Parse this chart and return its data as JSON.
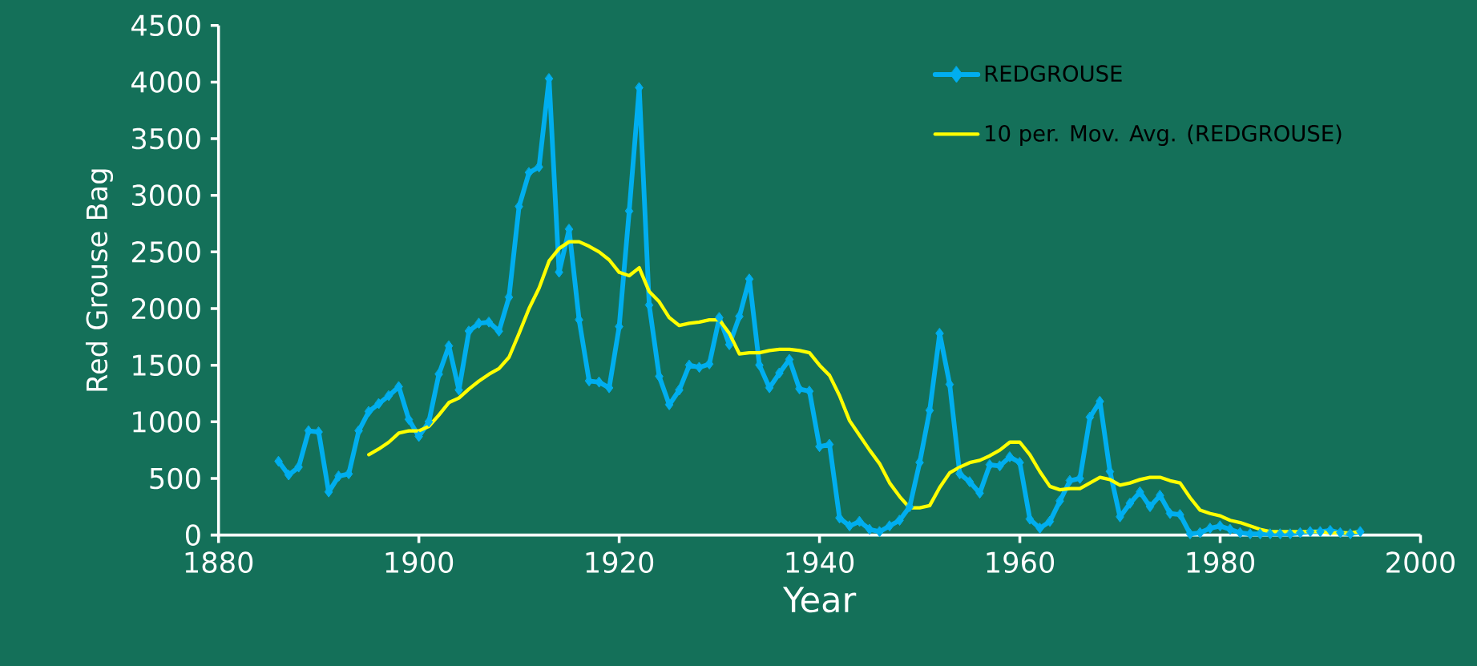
{
  "chart_data": {
    "type": "line",
    "xlabel": "Year",
    "ylabel": "Red Grouse Bag",
    "x": [
      1886,
      1887,
      1888,
      1889,
      1890,
      1891,
      1892,
      1893,
      1894,
      1895,
      1896,
      1897,
      1898,
      1899,
      1900,
      1901,
      1902,
      1903,
      1904,
      1905,
      1906,
      1907,
      1908,
      1909,
      1910,
      1911,
      1912,
      1913,
      1914,
      1915,
      1916,
      1917,
      1918,
      1919,
      1920,
      1921,
      1922,
      1923,
      1924,
      1925,
      1926,
      1927,
      1928,
      1929,
      1930,
      1931,
      1932,
      1933,
      1934,
      1935,
      1936,
      1937,
      1938,
      1939,
      1940,
      1941,
      1942,
      1943,
      1944,
      1945,
      1946,
      1947,
      1948,
      1949,
      1950,
      1951,
      1952,
      1953,
      1954,
      1955,
      1956,
      1957,
      1958,
      1959,
      1960,
      1961,
      1962,
      1963,
      1964,
      1965,
      1966,
      1967,
      1968,
      1969,
      1970,
      1971,
      1972,
      1973,
      1974,
      1975,
      1976,
      1977,
      1978,
      1979,
      1980,
      1981,
      1982,
      1983,
      1984,
      1985,
      1986,
      1987,
      1988,
      1989,
      1990,
      1991,
      1992,
      1993,
      1994
    ],
    "series": [
      {
        "name": "REDGROUSE",
        "color": "#00aeef",
        "marker": "diamond",
        "values": [
          650,
          530,
          600,
          920,
          910,
          380,
          520,
          540,
          920,
          1090,
          1160,
          1230,
          1310,
          1020,
          870,
          1000,
          1420,
          1670,
          1280,
          1800,
          1870,
          1880,
          1800,
          2100,
          2900,
          3200,
          3250,
          4030,
          2320,
          2700,
          1900,
          1360,
          1350,
          1300,
          1840,
          2860,
          3950,
          2030,
          1400,
          1150,
          1280,
          1500,
          1480,
          1510,
          1920,
          1680,
          1930,
          2260,
          1500,
          1300,
          1430,
          1550,
          1290,
          1270,
          780,
          800,
          150,
          80,
          120,
          50,
          30,
          80,
          130,
          250,
          640,
          1100,
          1780,
          1330,
          540,
          470,
          370,
          620,
          610,
          690,
          640,
          140,
          60,
          120,
          300,
          480,
          500,
          1040,
          1180,
          560,
          160,
          280,
          380,
          250,
          350,
          190,
          180,
          10,
          20,
          60,
          80,
          50,
          20,
          10,
          10,
          10,
          10,
          10,
          20,
          30,
          30,
          40,
          20,
          10,
          30
        ]
      },
      {
        "name": "10 per. Mov. Avg. (REDGROUSE)",
        "color": "#ffff00",
        "marker": "none",
        "x": [
          1895,
          1896,
          1897,
          1898,
          1899,
          1900,
          1901,
          1902,
          1903,
          1904,
          1905,
          1906,
          1907,
          1908,
          1909,
          1910,
          1911,
          1912,
          1913,
          1914,
          1915,
          1916,
          1917,
          1918,
          1919,
          1920,
          1921,
          1922,
          1923,
          1924,
          1925,
          1926,
          1927,
          1928,
          1929,
          1930,
          1931,
          1932,
          1933,
          1934,
          1935,
          1936,
          1937,
          1938,
          1939,
          1940,
          1941,
          1942,
          1943,
          1944,
          1945,
          1946,
          1947,
          1948,
          1949,
          1950,
          1951,
          1952,
          1953,
          1954,
          1955,
          1956,
          1957,
          1958,
          1959,
          1960,
          1961,
          1962,
          1963,
          1964,
          1965,
          1966,
          1967,
          1968,
          1969,
          1970,
          1971,
          1972,
          1973,
          1974,
          1975,
          1976,
          1977,
          1978,
          1979,
          1980,
          1981,
          1982,
          1983,
          1984,
          1985,
          1986,
          1987,
          1988,
          1989,
          1990,
          1991,
          1992,
          1993,
          1994
        ],
        "values": [
          710,
          760,
          820,
          900,
          920,
          920,
          960,
          1060,
          1170,
          1210,
          1290,
          1360,
          1420,
          1470,
          1570,
          1780,
          2000,
          2180,
          2420,
          2530,
          2590,
          2590,
          2550,
          2500,
          2430,
          2320,
          2290,
          2360,
          2150,
          2060,
          1920,
          1850,
          1870,
          1880,
          1900,
          1900,
          1780,
          1600,
          1610,
          1610,
          1630,
          1640,
          1640,
          1630,
          1610,
          1500,
          1410,
          1230,
          1010,
          880,
          750,
          630,
          460,
          340,
          240,
          240,
          260,
          420,
          550,
          600,
          640,
          660,
          700,
          750,
          820,
          820,
          710,
          560,
          430,
          400,
          410,
          410,
          460,
          510,
          490,
          440,
          460,
          490,
          510,
          510,
          480,
          460,
          330,
          220,
          190,
          170,
          130,
          110,
          80,
          50,
          30,
          30,
          30,
          30,
          30,
          30,
          20,
          20,
          20,
          30
        ]
      }
    ],
    "xlim": [
      1880,
      2000
    ],
    "xticks": [
      1880,
      1900,
      1920,
      1940,
      1960,
      1980,
      2000
    ],
    "ylim": [
      0,
      4500
    ],
    "yticks": [
      0,
      500,
      1000,
      1500,
      2000,
      2500,
      3000,
      3500,
      4000,
      4500
    ],
    "legend": "top right"
  }
}
